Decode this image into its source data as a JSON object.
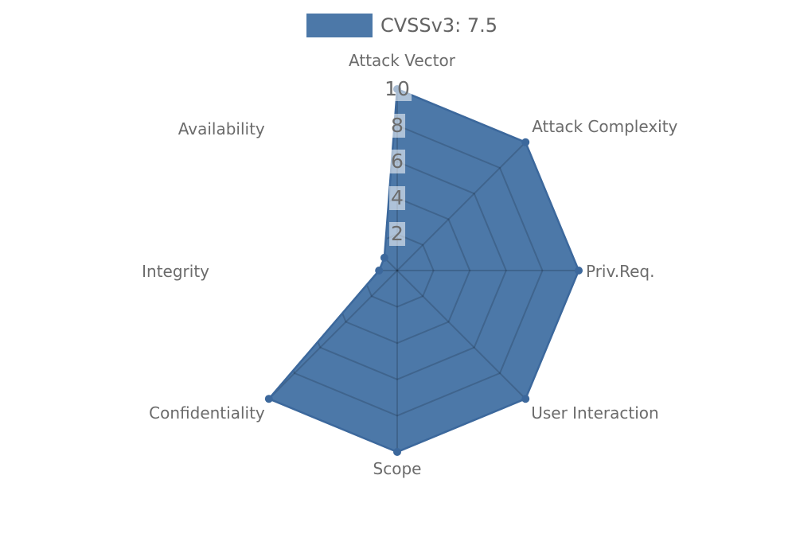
{
  "page": {
    "background": "#ffffff"
  },
  "legend": {
    "label": "CVSSv3: 7.5",
    "swatch_color": "#4c78a8",
    "text_color": "#636363"
  },
  "chart_data": {
    "type": "radar",
    "title": "CVSSv3: 7.5",
    "categories": [
      "Attack Vector",
      "Attack Complexity",
      "Priv.Req.",
      "User Interaction",
      "Scope",
      "Confidentiality",
      "Integrity",
      "Availability"
    ],
    "series": [
      {
        "name": "CVSSv3: 7.5",
        "values": [
          10,
          10,
          10,
          10,
          10,
          10,
          1,
          1
        ],
        "fill_color": "#4c78a8",
        "edge_color": "#3c689c",
        "marker_color": "#3c689c"
      }
    ],
    "rmax": 10,
    "rticks": [
      2,
      4,
      6,
      8,
      10
    ],
    "start_axis": "top",
    "direction": "clockwise",
    "grid": true,
    "grid_shape": "polygon",
    "grid_color": "rgba(0,0,0,0.16)",
    "grid_visible_only_inside_polygon": true,
    "axis_label_color": "#6b6b6b",
    "tick_label_color": "#6b6b6b",
    "tick_label_bg": "rgba(255,255,255,0.55)",
    "legend_position": "top-center"
  }
}
